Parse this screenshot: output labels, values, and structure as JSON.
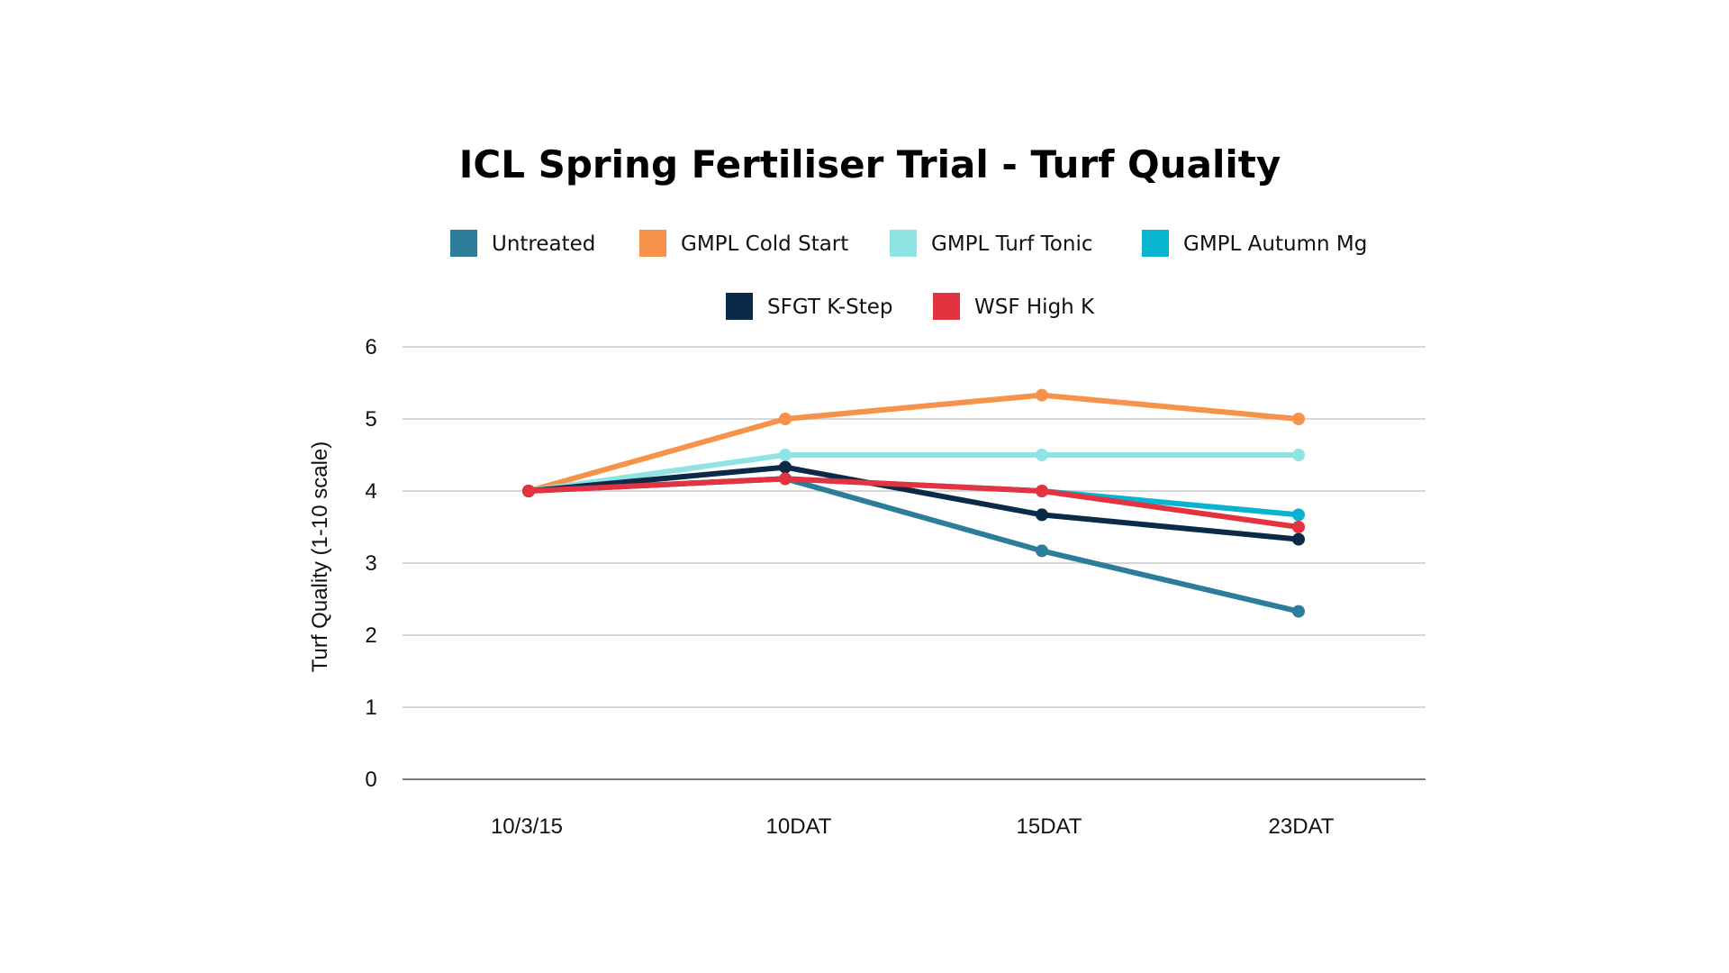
{
  "chart_data": {
    "type": "line",
    "title": "ICL Spring Fertiliser Trial - Turf Quality",
    "xlabel": "",
    "ylabel": "Turf Quality (1-10 scale)",
    "categories": [
      "10/3/15",
      "10DAT",
      "15DAT",
      "23DAT"
    ],
    "ylim": [
      0,
      6
    ],
    "yticks": [
      "0",
      "1",
      "2",
      "3",
      "4",
      "5",
      "6"
    ],
    "grid": true,
    "legend_position": "top",
    "series": [
      {
        "name": "Untreated",
        "color": "#2b7d9a",
        "values": [
          4.0,
          4.17,
          3.17,
          2.33
        ]
      },
      {
        "name": "GMPL Cold Start",
        "color": "#f7924a",
        "values": [
          4.0,
          5.0,
          5.33,
          5.0
        ]
      },
      {
        "name": "GMPL Turf Tonic",
        "color": "#8fe3e3",
        "values": [
          4.0,
          4.5,
          4.5,
          4.5
        ]
      },
      {
        "name": "GMPL Autumn Mg",
        "color": "#08b4d0",
        "values": [
          4.0,
          4.17,
          4.0,
          3.67
        ]
      },
      {
        "name": "SFGT K-Step",
        "color": "#0b2a47",
        "values": [
          4.0,
          4.33,
          3.67,
          3.33
        ]
      },
      {
        "name": "WSF High K",
        "color": "#e33240",
        "values": [
          4.0,
          4.17,
          4.0,
          3.5
        ]
      }
    ]
  }
}
